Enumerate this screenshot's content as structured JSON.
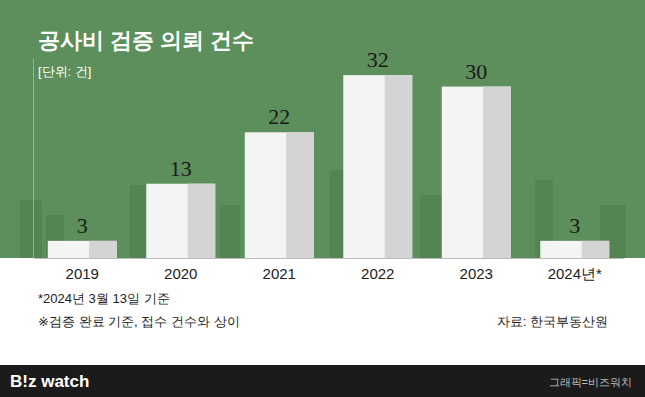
{
  "chart_data": {
    "type": "bar",
    "title": "공사비 검증 의뢰 건수",
    "subtitle": "[단위: 건]",
    "categories": [
      "2019",
      "2020",
      "2021",
      "2022",
      "2023",
      "2024년*"
    ],
    "values": [
      3,
      13,
      22,
      32,
      30,
      3
    ],
    "color": "#f4f4f4",
    "ylim": [
      0,
      35
    ],
    "data_labels": true,
    "tick_labels": "x",
    "annotations": [
      "*2024년 3월 13일 기준",
      "※검증 완료 기준, 접수 건수와 상이"
    ],
    "source": "자료: 한국부동산원"
  },
  "footer": {
    "logo": "B!z watch",
    "credit": "그래픽=비즈워치"
  }
}
